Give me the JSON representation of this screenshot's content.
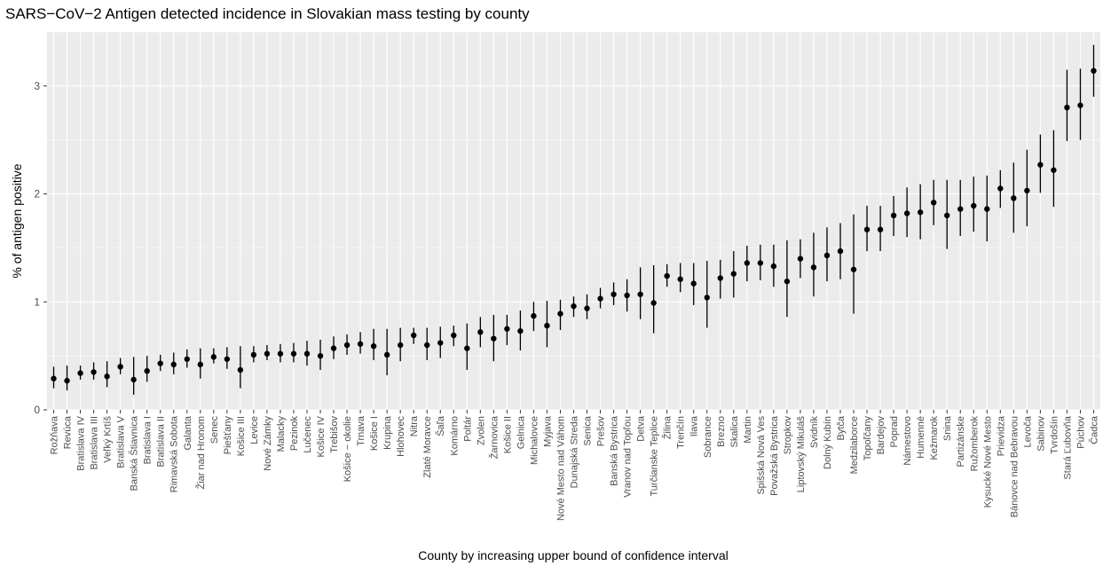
{
  "chart_data": {
    "type": "scatter",
    "title": "SARS−CoV−2 Antigen detected incidence in Slovakian mass testing by county",
    "xlabel": "County by increasing upper bound of confidence interval",
    "ylabel": "% of antigen positive",
    "ylim": [
      0,
      3.5
    ],
    "y_ticks": [
      "0",
      "1",
      "2",
      "3"
    ],
    "grid": true,
    "legend": "none",
    "colors": {
      "panel": "#ebebeb",
      "grid_major": "#ffffff",
      "point": "#000000"
    },
    "categories": [
      "Rožňava",
      "Revúca",
      "Bratislava IV",
      "Bratislava III",
      "Veľký Krtíš",
      "Bratislava V",
      "Banská Štiavnica",
      "Bratislava I",
      "Bratislava II",
      "Rimavská Sobota",
      "Galanta",
      "Žiar nad Hronom",
      "Senec",
      "Piešťany",
      "Košice III",
      "Levice",
      "Nové Zámky",
      "Malacky",
      "Pezinok",
      "Lučenec",
      "Košice IV",
      "Trebišov",
      "Košice − okolie",
      "Trnava",
      "Košice I",
      "Krupina",
      "Hlohovec",
      "Nitra",
      "Zlaté Moravce",
      "Šaľa",
      "Komárno",
      "Poltár",
      "Zvolen",
      "Žarnovica",
      "Košice II",
      "Gelnica",
      "Michalovce",
      "Myjava",
      "Nové Mesto nad Váhom",
      "Dunajská Streda",
      "Senica",
      "Prešov",
      "Banská Bystrica",
      "Vranov nad Topľou",
      "Detva",
      "Turčianske Teplice",
      "Žilina",
      "Trenčín",
      "Ilava",
      "Sobrance",
      "Brezno",
      "Skalica",
      "Martin",
      "Spišská Nová Ves",
      "Považská Bystrica",
      "Stropkov",
      "Liptovský Mikuláš",
      "Svidník",
      "Dolný Kubín",
      "Bytča",
      "Medzilaborce",
      "Topoľčany",
      "Bardejov",
      "Poprad",
      "Námestovo",
      "Humenné",
      "Kežmarok",
      "Snina",
      "Partizánske",
      "Ružomberok",
      "Kysucké Nové Mesto",
      "Prievidza",
      "Bánovce nad Bebravou",
      "Levoča",
      "Sabinov",
      "Tvrdošín",
      "Stará Ľubovňa",
      "Púchov",
      "Čadca"
    ],
    "values": [
      0.29,
      0.27,
      0.34,
      0.35,
      0.31,
      0.4,
      0.28,
      0.36,
      0.43,
      0.42,
      0.47,
      0.42,
      0.49,
      0.47,
      0.37,
      0.51,
      0.52,
      0.52,
      0.52,
      0.52,
      0.5,
      0.57,
      0.6,
      0.61,
      0.59,
      0.51,
      0.6,
      0.69,
      0.6,
      0.62,
      0.69,
      0.57,
      0.72,
      0.66,
      0.75,
      0.73,
      0.87,
      0.78,
      0.89,
      0.96,
      0.94,
      1.03,
      1.07,
      1.06,
      1.07,
      0.99,
      1.24,
      1.21,
      1.17,
      1.04,
      1.22,
      1.26,
      1.36,
      1.36,
      1.33,
      1.19,
      1.4,
      1.32,
      1.43,
      1.47,
      1.3,
      1.67,
      1.67,
      1.8,
      1.82,
      1.83,
      1.92,
      1.8,
      1.86,
      1.89,
      1.86,
      2.05,
      1.96,
      2.03,
      2.27,
      2.22,
      2.8,
      2.82,
      3.14
    ],
    "lower": [
      0.2,
      0.18,
      0.28,
      0.28,
      0.21,
      0.33,
      0.14,
      0.26,
      0.36,
      0.33,
      0.39,
      0.29,
      0.43,
      0.38,
      0.2,
      0.44,
      0.46,
      0.44,
      0.44,
      0.41,
      0.37,
      0.47,
      0.51,
      0.52,
      0.46,
      0.32,
      0.45,
      0.61,
      0.46,
      0.48,
      0.59,
      0.37,
      0.58,
      0.45,
      0.6,
      0.55,
      0.73,
      0.58,
      0.74,
      0.86,
      0.84,
      0.94,
      0.97,
      0.91,
      0.84,
      0.71,
      1.14,
      1.09,
      0.97,
      0.76,
      1.03,
      1.04,
      1.19,
      1.2,
      1.14,
      0.86,
      1.22,
      1.05,
      1.19,
      1.21,
      0.89,
      1.47,
      1.47,
      1.61,
      1.6,
      1.58,
      1.71,
      1.49,
      1.61,
      1.65,
      1.56,
      1.87,
      1.64,
      1.7,
      2.01,
      1.88,
      2.49,
      2.5,
      2.9
    ],
    "upper": [
      0.4,
      0.41,
      0.41,
      0.44,
      0.45,
      0.48,
      0.49,
      0.5,
      0.51,
      0.53,
      0.56,
      0.57,
      0.57,
      0.58,
      0.59,
      0.59,
      0.6,
      0.61,
      0.62,
      0.64,
      0.65,
      0.68,
      0.7,
      0.72,
      0.75,
      0.75,
      0.76,
      0.76,
      0.76,
      0.77,
      0.78,
      0.8,
      0.86,
      0.88,
      0.88,
      0.92,
      1.0,
      1.01,
      1.02,
      1.05,
      1.07,
      1.13,
      1.18,
      1.21,
      1.32,
      1.34,
      1.35,
      1.36,
      1.36,
      1.38,
      1.39,
      1.47,
      1.52,
      1.53,
      1.53,
      1.57,
      1.58,
      1.64,
      1.69,
      1.73,
      1.81,
      1.89,
      1.89,
      1.98,
      2.06,
      2.09,
      2.13,
      2.13,
      2.13,
      2.16,
      2.17,
      2.22,
      2.29,
      2.41,
      2.55,
      2.59,
      3.15,
      3.16,
      3.38
    ]
  }
}
